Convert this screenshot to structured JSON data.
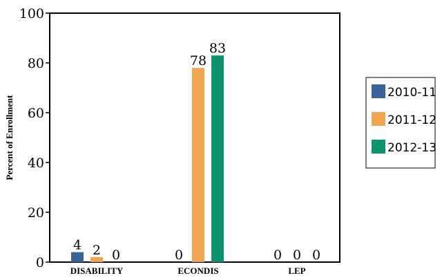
{
  "chart_data": {
    "type": "bar",
    "categories": [
      "DISABILITY",
      "ECONDIS",
      "LEP"
    ],
    "series": [
      {
        "name": "2010-11",
        "values": [
          4,
          0,
          0
        ],
        "color": "#3a6399"
      },
      {
        "name": "2011-12",
        "values": [
          2,
          78,
          0
        ],
        "color": "#f0a550"
      },
      {
        "name": "2012-13",
        "values": [
          0,
          83,
          0
        ],
        "color": "#0d9270"
      }
    ],
    "title": "",
    "xlabel": "",
    "ylabel": "Percent of Enrollment",
    "ylim": [
      0,
      100
    ],
    "yticks": [
      0,
      20,
      40,
      60,
      80,
      100
    ],
    "grid": false,
    "legend_position": "right"
  }
}
